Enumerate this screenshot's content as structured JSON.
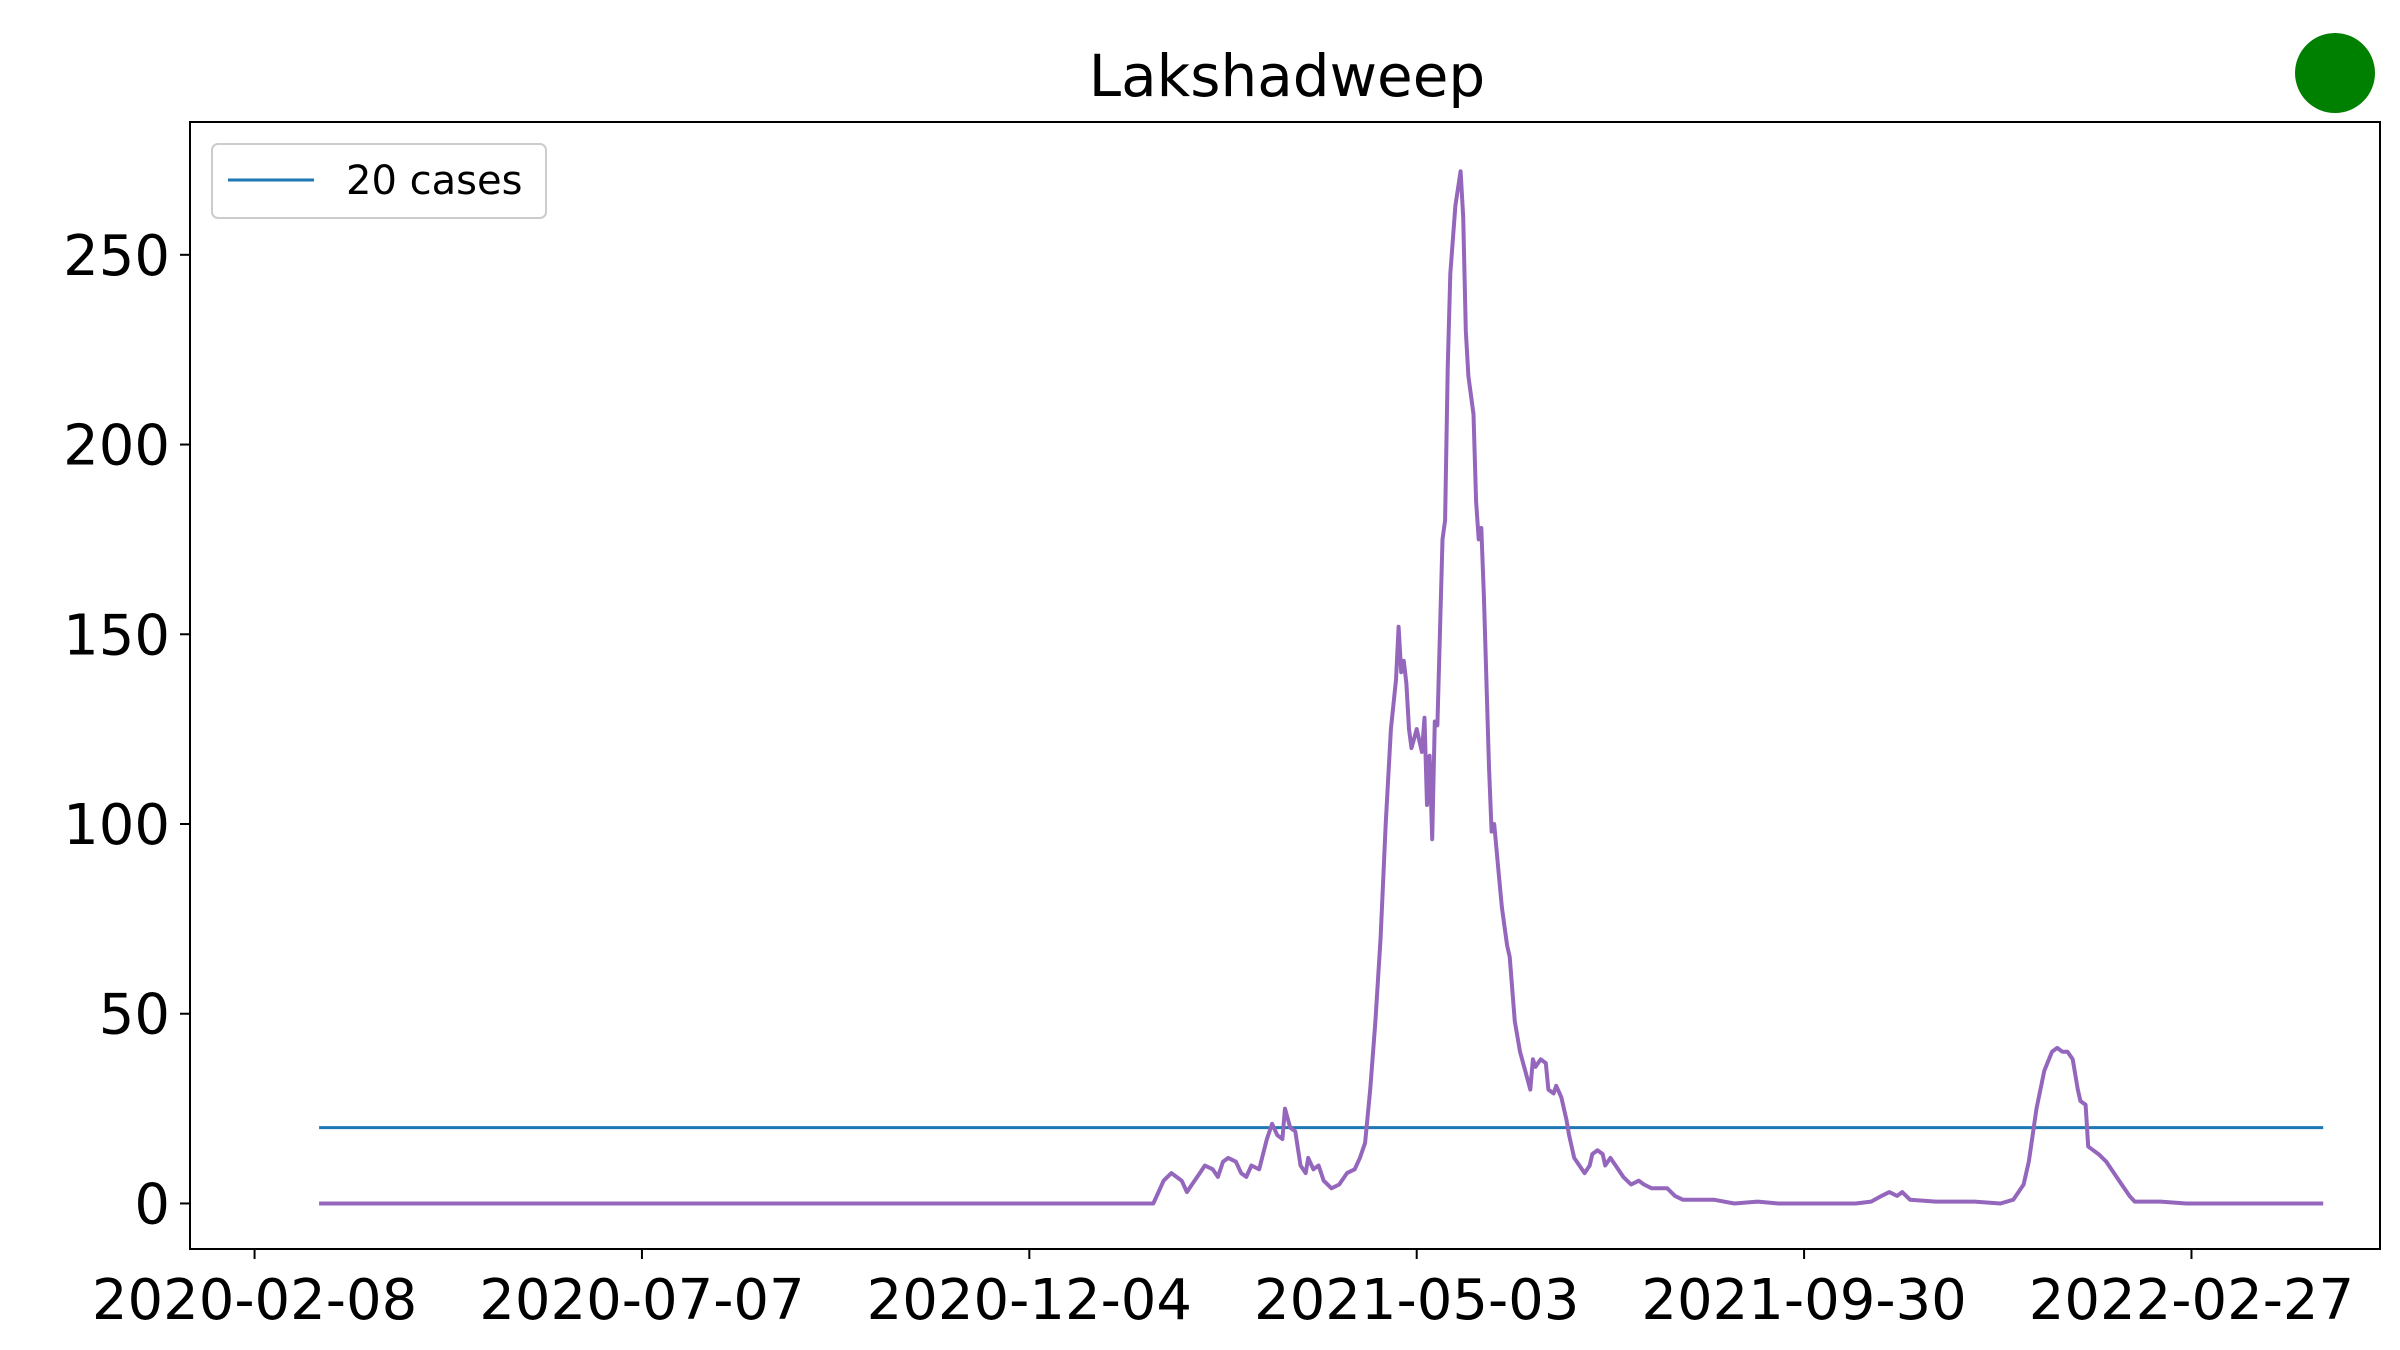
{
  "chart_data": {
    "type": "line",
    "title": "Lakshadweep",
    "xlabel": "",
    "ylabel": "",
    "x_axis_type": "date",
    "xlim": [
      "2020-01-14",
      "2022-05-11"
    ],
    "ylim": [
      -12,
      285
    ],
    "x_ticks": [
      "2020-02-08",
      "2020-07-07",
      "2020-12-04",
      "2021-05-03",
      "2021-09-30",
      "2022-02-27"
    ],
    "y_ticks": [
      0,
      50,
      100,
      150,
      200,
      250
    ],
    "legend": {
      "placement": "top-left",
      "entries": [
        "20 cases"
      ]
    },
    "grid": false,
    "series": [
      {
        "name": "20 cases",
        "color": "#1f77b4",
        "points": [
          [
            "2020-03-04",
            20
          ],
          [
            "2022-04-19",
            20
          ]
        ]
      },
      {
        "color": "#9467bd",
        "points": [
          [
            "2020-03-04",
            0
          ],
          [
            "2021-01-21",
            0
          ],
          [
            "2021-01-23",
            3
          ],
          [
            "2021-01-25",
            6
          ],
          [
            "2021-01-28",
            8
          ],
          [
            "2021-01-30",
            7
          ],
          [
            "2021-02-01",
            6
          ],
          [
            "2021-02-03",
            3
          ],
          [
            "2021-02-05",
            5
          ],
          [
            "2021-02-08",
            8
          ],
          [
            "2021-02-10",
            10
          ],
          [
            "2021-02-13",
            9
          ],
          [
            "2021-02-15",
            7
          ],
          [
            "2021-02-17",
            11
          ],
          [
            "2021-02-19",
            12
          ],
          [
            "2021-02-22",
            11
          ],
          [
            "2021-02-24",
            8
          ],
          [
            "2021-02-26",
            7
          ],
          [
            "2021-02-28",
            10
          ],
          [
            "2021-03-03",
            9
          ],
          [
            "2021-03-06",
            17
          ],
          [
            "2021-03-08",
            21
          ],
          [
            "2021-03-10",
            18
          ],
          [
            "2021-03-12",
            17
          ],
          [
            "2021-03-13",
            25
          ],
          [
            "2021-03-15",
            20
          ],
          [
            "2021-03-17",
            19
          ],
          [
            "2021-03-19",
            10
          ],
          [
            "2021-03-21",
            8
          ],
          [
            "2021-03-22",
            12
          ],
          [
            "2021-03-24",
            9
          ],
          [
            "2021-03-26",
            10
          ],
          [
            "2021-03-28",
            6
          ],
          [
            "2021-03-31",
            4
          ],
          [
            "2021-04-03",
            5
          ],
          [
            "2021-04-06",
            8
          ],
          [
            "2021-04-09",
            9
          ],
          [
            "2021-04-11",
            12
          ],
          [
            "2021-04-13",
            16
          ],
          [
            "2021-04-15",
            30
          ],
          [
            "2021-04-17",
            48
          ],
          [
            "2021-04-19",
            70
          ],
          [
            "2021-04-21",
            100
          ],
          [
            "2021-04-23",
            125
          ],
          [
            "2021-04-25",
            138
          ],
          [
            "2021-04-26",
            152
          ],
          [
            "2021-04-27",
            140
          ],
          [
            "2021-04-28",
            143
          ],
          [
            "2021-04-29",
            137
          ],
          [
            "2021-04-30",
            125
          ],
          [
            "2021-05-01",
            120
          ],
          [
            "2021-05-03",
            125
          ],
          [
            "2021-05-05",
            119
          ],
          [
            "2021-05-06",
            128
          ],
          [
            "2021-05-07",
            105
          ],
          [
            "2021-05-08",
            118
          ],
          [
            "2021-05-09",
            96
          ],
          [
            "2021-05-10",
            127
          ],
          [
            "2021-05-11",
            126
          ],
          [
            "2021-05-13",
            175
          ],
          [
            "2021-05-14",
            180
          ],
          [
            "2021-05-15",
            220
          ],
          [
            "2021-05-16",
            245
          ],
          [
            "2021-05-18",
            263
          ],
          [
            "2021-05-20",
            272
          ],
          [
            "2021-05-21",
            260
          ],
          [
            "2021-05-22",
            230
          ],
          [
            "2021-05-23",
            218
          ],
          [
            "2021-05-25",
            208
          ],
          [
            "2021-05-26",
            185
          ],
          [
            "2021-05-27",
            175
          ],
          [
            "2021-05-28",
            178
          ],
          [
            "2021-05-29",
            160
          ],
          [
            "2021-05-31",
            115
          ],
          [
            "2021-06-01",
            98
          ],
          [
            "2021-06-02",
            100
          ],
          [
            "2021-06-04",
            85
          ],
          [
            "2021-06-05",
            78
          ],
          [
            "2021-06-07",
            68
          ],
          [
            "2021-06-08",
            65
          ],
          [
            "2021-06-10",
            48
          ],
          [
            "2021-06-12",
            40
          ],
          [
            "2021-06-14",
            35
          ],
          [
            "2021-06-16",
            30
          ],
          [
            "2021-06-17",
            38
          ],
          [
            "2021-06-18",
            36
          ],
          [
            "2021-06-20",
            38
          ],
          [
            "2021-06-22",
            37
          ],
          [
            "2021-06-23",
            30
          ],
          [
            "2021-06-25",
            29
          ],
          [
            "2021-06-26",
            31
          ],
          [
            "2021-06-28",
            28
          ],
          [
            "2021-06-30",
            22
          ],
          [
            "2021-07-01",
            18
          ],
          [
            "2021-07-03",
            12
          ],
          [
            "2021-07-05",
            10
          ],
          [
            "2021-07-07",
            8
          ],
          [
            "2021-07-09",
            10
          ],
          [
            "2021-07-10",
            13
          ],
          [
            "2021-07-12",
            14
          ],
          [
            "2021-07-14",
            13
          ],
          [
            "2021-07-15",
            10
          ],
          [
            "2021-07-17",
            12
          ],
          [
            "2021-07-19",
            10
          ],
          [
            "2021-07-22",
            7
          ],
          [
            "2021-07-25",
            5
          ],
          [
            "2021-07-28",
            6
          ],
          [
            "2021-07-30",
            5
          ],
          [
            "2021-08-02",
            4
          ],
          [
            "2021-08-05",
            4
          ],
          [
            "2021-08-08",
            4
          ],
          [
            "2021-08-11",
            2
          ],
          [
            "2021-08-14",
            1
          ],
          [
            "2021-08-20",
            1
          ],
          [
            "2021-08-26",
            1
          ],
          [
            "2021-09-03",
            0
          ],
          [
            "2021-09-12",
            0.5
          ],
          [
            "2021-09-20",
            0
          ],
          [
            "2021-10-20",
            0
          ],
          [
            "2021-10-26",
            0.5
          ],
          [
            "2021-10-30",
            2
          ],
          [
            "2021-11-02",
            3
          ],
          [
            "2021-11-05",
            2
          ],
          [
            "2021-11-07",
            3
          ],
          [
            "2021-11-10",
            1
          ],
          [
            "2021-11-20",
            0.5
          ],
          [
            "2021-12-05",
            0.5
          ],
          [
            "2021-12-15",
            0
          ],
          [
            "2021-12-20",
            1
          ],
          [
            "2021-12-24",
            5
          ],
          [
            "2021-12-26",
            11
          ],
          [
            "2021-12-29",
            25
          ],
          [
            "2022-01-01",
            35
          ],
          [
            "2022-01-04",
            40
          ],
          [
            "2022-01-06",
            41
          ],
          [
            "2022-01-08",
            40
          ],
          [
            "2022-01-10",
            40
          ],
          [
            "2022-01-12",
            38
          ],
          [
            "2022-01-14",
            30
          ],
          [
            "2022-01-15",
            27
          ],
          [
            "2022-01-17",
            26
          ],
          [
            "2022-01-18",
            15
          ],
          [
            "2022-01-20",
            14
          ],
          [
            "2022-01-22",
            13
          ],
          [
            "2022-01-25",
            11
          ],
          [
            "2022-01-28",
            8
          ],
          [
            "2022-01-31",
            5
          ],
          [
            "2022-02-03",
            2
          ],
          [
            "2022-02-05",
            0.5
          ],
          [
            "2022-02-15",
            0.5
          ],
          [
            "2022-02-25",
            0
          ],
          [
            "2022-04-19",
            0
          ]
        ]
      }
    ],
    "status_marker_color": "#008000"
  }
}
